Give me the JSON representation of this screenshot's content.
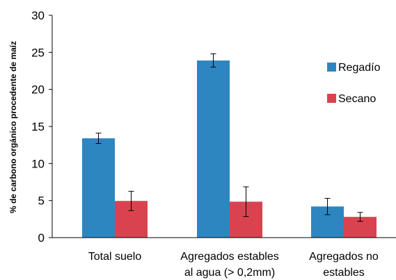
{
  "chart_data": {
    "type": "bar",
    "ylabel": "% de carbono orgánico procedente de maíz",
    "ylim": [
      0,
      30
    ],
    "yticks": [
      "0",
      "5",
      "10",
      "15",
      "20",
      "25",
      "30"
    ],
    "categories": [
      [
        "Total suelo"
      ],
      [
        "Agregados estables",
        "al agua (> 0,2mm)"
      ],
      [
        "Agregados no",
        "estables"
      ]
    ],
    "series": [
      {
        "name": "Regadío",
        "color": "#2E86C1",
        "values": [
          13.4,
          23.9,
          4.2
        ],
        "errors": [
          0.7,
          0.9,
          1.1
        ]
      },
      {
        "name": "Secano",
        "color": "#D9434F",
        "values": [
          4.95,
          4.85,
          2.8
        ],
        "errors": [
          1.3,
          2.0,
          0.6
        ]
      }
    ],
    "legend_position": "right",
    "grid": false
  }
}
